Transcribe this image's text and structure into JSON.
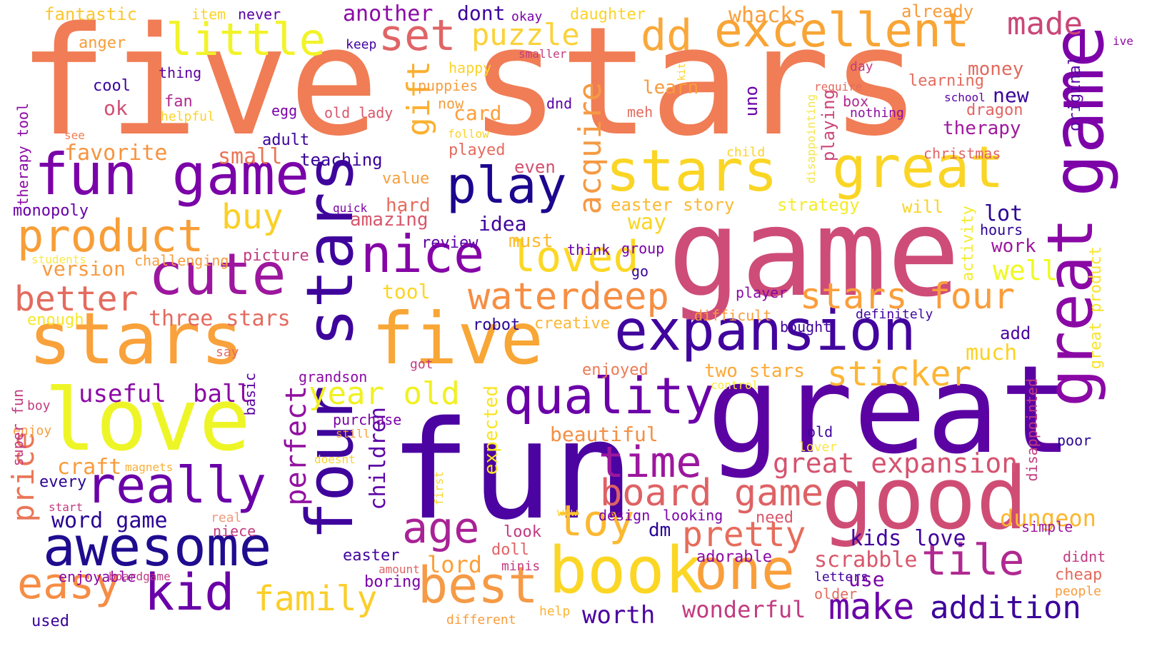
{
  "word_cloud": {
    "words": [
      {
        "text": "five stars",
        "color": "#f07d55"
      },
      {
        "text": "game",
        "color": "#ce4c78"
      },
      {
        "text": "great",
        "color": "#5b02a3"
      },
      {
        "text": "fun",
        "color": "#4b03a1"
      },
      {
        "text": "good",
        "color": "#cf4d75"
      },
      {
        "text": "five",
        "color": "#f8a635"
      },
      {
        "text": "stars",
        "color": "#f9a13b"
      },
      {
        "text": "love",
        "color": "#eef527"
      },
      {
        "text": "four stars",
        "color": "#3e049c"
      },
      {
        "text": "fun game",
        "color": "#7a03a8"
      },
      {
        "text": "great",
        "color": "#fbd525"
      },
      {
        "text": "game",
        "color": "#7d03a8"
      },
      {
        "text": "great",
        "color": "#8a09a5"
      },
      {
        "text": "stars",
        "color": "#fad524"
      },
      {
        "text": "expansion",
        "color": "#41049d"
      },
      {
        "text": "cute",
        "color": "#9c179e"
      },
      {
        "text": "awesome",
        "color": "#1f0c8f"
      },
      {
        "text": "really",
        "color": "#6a00a8"
      },
      {
        "text": "kid",
        "color": "#6a00a8"
      },
      {
        "text": "book",
        "color": "#fbd625"
      },
      {
        "text": "one",
        "color": "#f89f3c"
      },
      {
        "text": "quality",
        "color": "#6b00a8"
      },
      {
        "text": "play",
        "color": "#1d068e"
      },
      {
        "text": "nice",
        "color": "#8604a6"
      },
      {
        "text": "product",
        "color": "#f79e38"
      },
      {
        "text": "excellent",
        "color": "#f8a536"
      },
      {
        "text": "little",
        "color": "#f1f329"
      },
      {
        "text": "dd",
        "color": "#f9a83a"
      },
      {
        "text": "set",
        "color": "#e06466"
      },
      {
        "text": "best",
        "color": "#f59a46"
      },
      {
        "text": "age",
        "color": "#a82296"
      },
      {
        "text": "time",
        "color": "#9c179e"
      },
      {
        "text": "tile",
        "color": "#b02991"
      },
      {
        "text": "toy",
        "color": "#fbb831"
      },
      {
        "text": "loved",
        "color": "#fbd824"
      },
      {
        "text": "easy",
        "color": "#f68d45"
      },
      {
        "text": "board game",
        "color": "#de6264"
      },
      {
        "text": "waterdeep",
        "color": "#f68e43"
      },
      {
        "text": "stars four",
        "color": "#fa9e3b"
      },
      {
        "text": "sticker",
        "color": "#fcb534"
      },
      {
        "text": "pretty",
        "color": "#e66c5c"
      },
      {
        "text": "make",
        "color": "#6a00a8"
      },
      {
        "text": "addition",
        "color": "#3c049b"
      },
      {
        "text": "better",
        "color": "#e36b5e"
      },
      {
        "text": "family",
        "color": "#fbce29"
      },
      {
        "text": "year old",
        "color": "#f0f121"
      },
      {
        "text": "perfect",
        "color": "#9212a0"
      },
      {
        "text": "price",
        "color": "#ea7658"
      },
      {
        "text": "buy",
        "color": "#fbd027"
      },
      {
        "text": "gift",
        "color": "#fbb030"
      },
      {
        "text": "puzzle",
        "color": "#fad23b"
      },
      {
        "text": "made",
        "color": "#ca4778"
      },
      {
        "text": "acquire",
        "color": "#f59a44"
      },
      {
        "text": "great expansion",
        "color": "#d5536f"
      },
      {
        "text": "useful",
        "color": "#8b0aa5"
      },
      {
        "text": "ball",
        "color": "#8b0aa5"
      },
      {
        "text": "children",
        "color": "#5c01a6"
      },
      {
        "text": "expected",
        "color": "#f9e426"
      },
      {
        "text": "wonderful",
        "color": "#c23b80"
      },
      {
        "text": "worth",
        "color": "#4a03a1"
      },
      {
        "text": "dungeon",
        "color": "#fbb732"
      },
      {
        "text": "kids love",
        "color": "#41049d"
      },
      {
        "text": "scrabble",
        "color": "#d8576b"
      },
      {
        "text": "word game",
        "color": "#2a0593"
      },
      {
        "text": "lord",
        "color": "#fc9f38"
      },
      {
        "text": "craft",
        "color": "#fa9b3b"
      },
      {
        "text": "three stars",
        "color": "#e46a5e"
      },
      {
        "text": "small",
        "color": "#ea7558"
      },
      {
        "text": "favorite",
        "color": "#f59440"
      },
      {
        "text": "version",
        "color": "#f89a40"
      },
      {
        "text": "ok",
        "color": "#d04f73"
      },
      {
        "text": "another",
        "color": "#8b0aa5"
      },
      {
        "text": "dont",
        "color": "#3f049c"
      },
      {
        "text": "fantastic",
        "color": "#fbc631"
      },
      {
        "text": "anger",
        "color": "#f79d3b"
      },
      {
        "text": "cool",
        "color": "#3a049a"
      },
      {
        "text": "fan",
        "color": "#b12a90"
      },
      {
        "text": "monopoly",
        "color": "#6a00a8"
      },
      {
        "text": "amazing",
        "color": "#d8576b"
      },
      {
        "text": "idea",
        "color": "#41049d"
      },
      {
        "text": "hard",
        "color": "#e66c5c"
      },
      {
        "text": "value",
        "color": "#f79e3a"
      },
      {
        "text": "card",
        "color": "#fc9f3b"
      },
      {
        "text": "even",
        "color": "#d25070"
      },
      {
        "text": "played",
        "color": "#e46b5e"
      },
      {
        "text": "uno",
        "color": "#6a00a8"
      },
      {
        "text": "learn",
        "color": "#f79b3e"
      },
      {
        "text": "meh",
        "color": "#e46b5e"
      },
      {
        "text": "whacks",
        "color": "#fa9e3b"
      },
      {
        "text": "money",
        "color": "#e26a5e"
      },
      {
        "text": "new",
        "color": "#3a049a"
      },
      {
        "text": "therapy",
        "color": "#a01a9c"
      },
      {
        "text": "dragon",
        "color": "#e16462"
      },
      {
        "text": "christmas",
        "color": "#e06466"
      },
      {
        "text": "learning",
        "color": "#e46b5e"
      },
      {
        "text": "original",
        "color": "#5502a4"
      },
      {
        "text": "already",
        "color": "#f79d3d"
      },
      {
        "text": "box",
        "color": "#b12a90"
      },
      {
        "text": "nothing",
        "color": "#8f0da4"
      },
      {
        "text": "school",
        "color": "#5b01a5"
      },
      {
        "text": "ive",
        "color": "#8f0da4"
      },
      {
        "text": "playing",
        "color": "#cb4679"
      },
      {
        "text": "disappointing",
        "color": "#f4e54c"
      },
      {
        "text": "lot",
        "color": "#2a0593"
      },
      {
        "text": "hours",
        "color": "#2e0595"
      },
      {
        "text": "work",
        "color": "#9c179e"
      },
      {
        "text": "activity",
        "color": "#f3eb2f"
      },
      {
        "text": "well",
        "color": "#f0f921"
      },
      {
        "text": "easter story",
        "color": "#fcb933"
      },
      {
        "text": "strategy",
        "color": "#f4ec27"
      },
      {
        "text": "will",
        "color": "#fad424"
      },
      {
        "text": "way",
        "color": "#f9d523"
      },
      {
        "text": "must",
        "color": "#fcb930"
      },
      {
        "text": "tool",
        "color": "#fcd525"
      },
      {
        "text": "review",
        "color": "#5b01a5"
      },
      {
        "text": "think",
        "color": "#6a00a8"
      },
      {
        "text": "group",
        "color": "#7a03a8"
      },
      {
        "text": "go",
        "color": "#3a049a"
      },
      {
        "text": "player",
        "color": "#8b0aa5"
      },
      {
        "text": "difficult",
        "color": "#f79c3b"
      },
      {
        "text": "definitely",
        "color": "#41049d"
      },
      {
        "text": "robot",
        "color": "#2a0593"
      },
      {
        "text": "creative",
        "color": "#fbb734"
      },
      {
        "text": "bought",
        "color": "#41049d"
      },
      {
        "text": "add",
        "color": "#4a03a1"
      },
      {
        "text": "much",
        "color": "#fcd225"
      },
      {
        "text": "two stars",
        "color": "#fca935"
      },
      {
        "text": "enjoyed",
        "color": "#ed7a54"
      },
      {
        "text": "control",
        "color": "#f9e93a"
      },
      {
        "text": "beautiful",
        "color": "#f48f44"
      },
      {
        "text": "old",
        "color": "#41049d"
      },
      {
        "text": "lover",
        "color": "#fbe645"
      },
      {
        "text": "poor",
        "color": "#2a0593"
      },
      {
        "text": "disappointed",
        "color": "#c03b81"
      },
      {
        "text": "great product",
        "color": "#f7e427"
      },
      {
        "text": "simple",
        "color": "#9c179e"
      },
      {
        "text": "didnt",
        "color": "#c03b81"
      },
      {
        "text": "cheap",
        "color": "#e46b5e"
      },
      {
        "text": "people",
        "color": "#f79d3d"
      },
      {
        "text": "dm",
        "color": "#2a0593"
      },
      {
        "text": "look",
        "color": "#c03b81"
      },
      {
        "text": "doll",
        "color": "#e06466"
      },
      {
        "text": "minis",
        "color": "#c23b80"
      },
      {
        "text": "adorable",
        "color": "#8b0aa5"
      },
      {
        "text": "need",
        "color": "#d8576b"
      },
      {
        "text": "looking",
        "color": "#7a03a8"
      },
      {
        "text": "design",
        "color": "#7a03a8"
      },
      {
        "text": "wow",
        "color": "#fbd32a"
      },
      {
        "text": "letters",
        "color": "#41049d"
      },
      {
        "text": "older",
        "color": "#e46b5e"
      },
      {
        "text": "use",
        "color": "#7a03a8"
      },
      {
        "text": "help",
        "color": "#fcb432"
      },
      {
        "text": "different",
        "color": "#f79d3d"
      },
      {
        "text": "boring",
        "color": "#7a03a8"
      },
      {
        "text": "amount",
        "color": "#e06466"
      },
      {
        "text": "easter",
        "color": "#41049d"
      },
      {
        "text": "enjoyable",
        "color": "#8b0aa5"
      },
      {
        "text": "boardgame",
        "color": "#c23b80"
      },
      {
        "text": "used",
        "color": "#3a049a"
      },
      {
        "text": "real",
        "color": "#f0997b"
      },
      {
        "text": "niece",
        "color": "#c23b80"
      },
      {
        "text": "every",
        "color": "#2a0593"
      },
      {
        "text": "start",
        "color": "#c23b80"
      },
      {
        "text": "magnets",
        "color": "#f9b03a"
      },
      {
        "text": "enjoy",
        "color": "#f79d3d"
      },
      {
        "text": "boy",
        "color": "#c23b80"
      },
      {
        "text": "basic",
        "color": "#5b01a5"
      },
      {
        "text": "say",
        "color": "#e46b5e"
      },
      {
        "text": "super fun",
        "color": "#c23b80"
      },
      {
        "text": "enough",
        "color": "#f6e628"
      },
      {
        "text": "students",
        "color": "#f9e84a"
      },
      {
        "text": "therapy tool",
        "color": "#8b0aa5"
      },
      {
        "text": "see",
        "color": "#f07d55"
      },
      {
        "text": "helpful",
        "color": "#fbd32a"
      },
      {
        "text": "thing",
        "color": "#5b01a5"
      },
      {
        "text": "item",
        "color": "#fbd32a"
      },
      {
        "text": "never",
        "color": "#5b01a5"
      },
      {
        "text": "keep",
        "color": "#41049d"
      },
      {
        "text": "okay",
        "color": "#7a03a8"
      },
      {
        "text": "daughter",
        "color": "#fbd32a"
      },
      {
        "text": "smaller",
        "color": "#c23b80"
      },
      {
        "text": "happy",
        "color": "#fbd32a"
      },
      {
        "text": "puppies",
        "color": "#f79d3d"
      },
      {
        "text": "now",
        "color": "#f79d3d"
      },
      {
        "text": "follow",
        "color": "#fbd32a"
      },
      {
        "text": "dnd",
        "color": "#5b01a5"
      },
      {
        "text": "kit",
        "color": "#fbd32a"
      },
      {
        "text": "day",
        "color": "#c23b80"
      },
      {
        "text": "require",
        "color": "#e46b5e"
      },
      {
        "text": "egg",
        "color": "#7a03a8"
      },
      {
        "text": "old lady",
        "color": "#d8576b"
      },
      {
        "text": "adult",
        "color": "#3a049a"
      },
      {
        "text": "teaching",
        "color": "#3a049a"
      },
      {
        "text": "child",
        "color": "#fbd32a"
      },
      {
        "text": "quick",
        "color": "#7a03a8"
      },
      {
        "text": "challenging",
        "color": "#f79d3d"
      },
      {
        "text": "picture",
        "color": "#c23b80"
      },
      {
        "text": "grandson",
        "color": "#8b0aa5"
      },
      {
        "text": "got",
        "color": "#c23b80"
      },
      {
        "text": "purchase",
        "color": "#7a03a8"
      },
      {
        "text": "still",
        "color": "#f79d3d"
      },
      {
        "text": "doesnt",
        "color": "#fbd32a"
      },
      {
        "text": "first",
        "color": "#fbd32a"
      }
    ]
  }
}
